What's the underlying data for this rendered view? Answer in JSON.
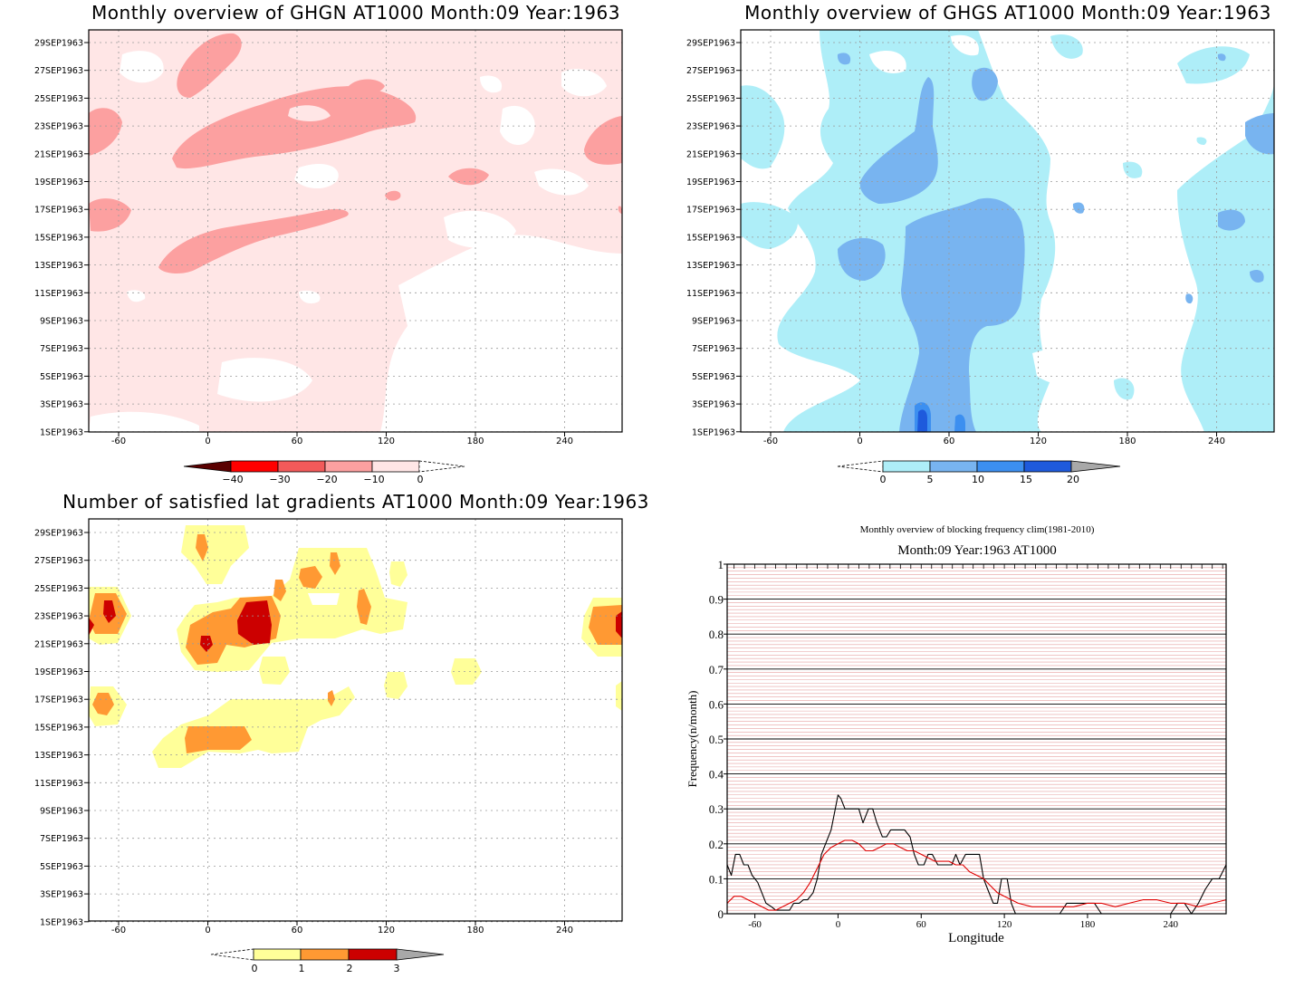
{
  "panels": {
    "ghgn": {
      "title": "Monthly overview of GHGN AT1000 Month:09 Year:1963",
      "colorbar_ticks": [
        "−40",
        "−30",
        "−20",
        "−10",
        "0"
      ],
      "colors": [
        "#5a0000",
        "#ff0000",
        "#f25a5a",
        "#fca0a0",
        "#ffe6e6"
      ]
    },
    "ghgs": {
      "title": "Monthly overview of GHGS AT1000 Month:09 Year:1963",
      "colorbar_ticks": [
        "0",
        "5",
        "10",
        "15",
        "20"
      ],
      "colors": [
        "#aeeef8",
        "#78b4f0",
        "#3c8ff0",
        "#1e5adc",
        "#a8a8a8"
      ]
    },
    "grad": {
      "title": "Number of satisfied lat gradients AT1000 Month:09 Year:1963",
      "colorbar_ticks": [
        "0",
        "1",
        "2",
        "3"
      ],
      "colors": [
        "#ffff99",
        "#ff9933",
        "#cc0000",
        "#a8a8a8"
      ]
    }
  },
  "shared_axes": {
    "y_ticks": [
      "29SEP1963",
      "27SEP1963",
      "25SEP1963",
      "23SEP1963",
      "21SEP1963",
      "19SEP1963",
      "17SEP1963",
      "15SEP1963",
      "13SEP1963",
      "11SEP1963",
      "9SEP1963",
      "7SEP1963",
      "5SEP1963",
      "3SEP1963",
      "1SEP1963"
    ],
    "x_ticks": [
      "-60",
      "0",
      "60",
      "120",
      "180",
      "240"
    ]
  },
  "freq": {
    "title": "Monthly overview of blocking frequency clim(1981-2010)",
    "subtitle": "Month:09 Year:1963  AT1000",
    "xlabel": "Longitude",
    "ylabel": "Frequency(n/month)",
    "y_ticks": [
      "0",
      "0.1",
      "0.2",
      "0.3",
      "0.4",
      "0.5",
      "0.6",
      "0.7",
      "0.8",
      "0.9",
      "1"
    ],
    "x_ticks": [
      "-60",
      "0",
      "60",
      "120",
      "180",
      "240"
    ]
  },
  "chart_data": [
    {
      "type": "heatmap",
      "title": "Monthly overview of GHGN AT1000 Month:09 Year:1963",
      "xlim": [
        -75,
        285
      ],
      "ylim": [
        "1SEP1963",
        "30SEP1963"
      ],
      "color_levels": [
        -40,
        -30,
        -20,
        -10,
        0
      ],
      "colors": [
        "#5a0000",
        "#ff0000",
        "#f25a5a",
        "#fca0a0",
        "#ffe6e6"
      ],
      "regions_lon_day": [
        {
          "level": "-20 to -10",
          "lon": [
            -5,
            145
          ],
          "day": [
            19.5,
            26.5
          ]
        },
        {
          "level": "-20 to -10",
          "lon": [
            -30,
            100
          ],
          "day": [
            13.2,
            17.2
          ]
        },
        {
          "level": "-20 to -10",
          "lon": [
            -18,
            40
          ],
          "day": [
            24.5,
            30
          ]
        },
        {
          "level": "-20 to -10",
          "lon": [
            -75,
            -55
          ],
          "day": [
            20.5,
            24.5
          ]
        },
        {
          "level": "-20 to -10",
          "lon": [
            255,
            285
          ],
          "day": [
            20.5,
            24
          ]
        },
        {
          "level": "-20 to -10",
          "lon": [
            -75,
            -46
          ],
          "day": [
            15.5,
            17.8
          ]
        },
        {
          "level": "-20 to -10",
          "lon": [
            94,
            122
          ],
          "day": [
            25,
            27
          ]
        },
        {
          "level": "-20 to -10",
          "lon": [
            165,
            195
          ],
          "day": [
            18.5,
            20
          ]
        },
        {
          "level": "-10 to 0",
          "lon": [
            -75,
            285
          ],
          "day": [
            1,
            30
          ]
        }
      ]
    },
    {
      "type": "heatmap",
      "title": "Monthly overview of GHGS AT1000 Month:09 Year:1963",
      "xlim": [
        -75,
        285
      ],
      "ylim": [
        "1SEP1963",
        "30SEP1963"
      ],
      "color_levels": [
        0,
        5,
        10,
        15,
        20
      ],
      "colors": [
        "#aeeef8",
        "#78b4f0",
        "#3c8ff0",
        "#1e5adc",
        "#a8a8a8"
      ],
      "regions_lon_day": [
        {
          "level": "0 to 5",
          "lon": [
            -15,
            145
          ],
          "day": [
            1,
            30
          ]
        },
        {
          "level": "0 to 5",
          "lon": [
            -75,
            -30
          ],
          "day": [
            12,
            30
          ]
        },
        {
          "level": "0 to 5",
          "lon": [
            210,
            285
          ],
          "day": [
            1,
            30
          ]
        },
        {
          "level": "5 to 10",
          "lon": [
            30,
            110
          ],
          "day": [
            1,
            17
          ]
        },
        {
          "level": "5 to 10",
          "lon": [
            0,
            55
          ],
          "day": [
            18.5,
            26
          ]
        },
        {
          "level": "5 to 10",
          "lon": [
            -12,
            20
          ],
          "day": [
            12.5,
            16
          ]
        },
        {
          "level": "5 to 10",
          "lon": [
            80,
            105
          ],
          "day": [
            25.5,
            29.5
          ]
        },
        {
          "level": "5 to 10",
          "lon": [
            247,
            285
          ],
          "day": [
            21,
            24
          ]
        },
        {
          "level": "10 to 15",
          "lon": [
            42,
            50
          ],
          "day": [
            1,
            3
          ]
        }
      ]
    },
    {
      "type": "heatmap",
      "title": "Number of satisfied lat gradients AT1000 Month:09 Year:1963",
      "xlim": [
        -75,
        285
      ],
      "ylim": [
        "1SEP1963",
        "30SEP1963"
      ],
      "color_levels": [
        0,
        1,
        2,
        3
      ],
      "colors": [
        "#ffff99",
        "#ff9933",
        "#cc0000",
        "#a8a8a8"
      ],
      "regions_lon_day": [
        {
          "level": "1 to 2",
          "lon": [
            -15,
            55
          ],
          "day": [
            20.5,
            23.5
          ]
        },
        {
          "level": "1 to 2",
          "lon": [
            -15,
            35
          ],
          "day": [
            13.6,
            15.2
          ]
        },
        {
          "level": "1 to 2",
          "lon": [
            -75,
            -60
          ],
          "day": [
            22,
            24
          ]
        },
        {
          "level": "1 to 2",
          "lon": [
            258,
            285
          ],
          "day": [
            21.8,
            24
          ]
        },
        {
          "level": "2 to 3",
          "lon": [
            20,
            45
          ],
          "day": [
            21.5,
            24.5
          ]
        },
        {
          "level": "2 to 3",
          "lon": [
            -5,
            3
          ],
          "day": [
            20.5,
            21.5
          ]
        },
        {
          "level": "0 to 1",
          "lon": [
            -40,
            135
          ],
          "day": [
            12.5,
            30
          ]
        }
      ]
    },
    {
      "type": "line",
      "title": "Monthly overview of blocking frequency clim(1981-2010)",
      "subtitle": "Month:09 Year:1963  AT1000",
      "xlabel": "Longitude",
      "ylabel": "Frequency(n/month)",
      "xlim": [
        -80,
        280
      ],
      "ylim": [
        0,
        1
      ],
      "grid": true,
      "series": [
        {
          "color": "#000000",
          "x": [
            -80,
            -77,
            -74,
            -71,
            -68,
            -65,
            -62,
            -58,
            -55,
            -52,
            -48,
            -45,
            -42,
            -38,
            -35,
            -32,
            -28,
            -25,
            -22,
            -18,
            -15,
            -12,
            -8,
            -5,
            -2,
            0,
            2,
            5,
            8,
            12,
            15,
            18,
            22,
            25,
            28,
            32,
            35,
            38,
            42,
            45,
            48,
            52,
            55,
            58,
            62,
            65,
            68,
            72,
            75,
            78,
            82,
            85,
            88,
            92,
            95,
            98,
            102,
            105,
            108,
            112,
            115,
            118,
            122,
            125,
            128,
            132,
            135,
            138,
            145,
            160,
            165,
            185,
            190,
            230,
            240,
            245,
            250,
            255,
            260,
            265,
            270,
            275,
            280
          ],
          "y": [
            0.14,
            0.11,
            0.17,
            0.17,
            0.14,
            0.14,
            0.11,
            0.09,
            0.06,
            0.03,
            0.02,
            0.01,
            0.01,
            0.01,
            0.01,
            0.03,
            0.03,
            0.04,
            0.04,
            0.06,
            0.1,
            0.17,
            0.21,
            0.24,
            0.3,
            0.34,
            0.33,
            0.3,
            0.3,
            0.3,
            0.3,
            0.26,
            0.3,
            0.3,
            0.26,
            0.22,
            0.22,
            0.24,
            0.24,
            0.24,
            0.24,
            0.22,
            0.17,
            0.14,
            0.14,
            0.17,
            0.17,
            0.14,
            0.14,
            0.14,
            0.14,
            0.17,
            0.14,
            0.17,
            0.17,
            0.17,
            0.17,
            0.1,
            0.07,
            0.03,
            0.03,
            0.1,
            0.1,
            0.03,
            0,
            0,
            0,
            0,
            0,
            0,
            0.03,
            0.03,
            0,
            0,
            0,
            0.03,
            0.03,
            0,
            0.03,
            0.07,
            0.1,
            0.1,
            0.14
          ]
        },
        {
          "color": "#e00000",
          "x": [
            -80,
            -75,
            -70,
            -65,
            -60,
            -55,
            -50,
            -45,
            -40,
            -35,
            -30,
            -25,
            -20,
            -15,
            -10,
            -5,
            0,
            5,
            10,
            15,
            20,
            25,
            30,
            35,
            40,
            45,
            50,
            55,
            60,
            65,
            70,
            75,
            80,
            85,
            90,
            95,
            100,
            105,
            110,
            115,
            120,
            130,
            140,
            150,
            160,
            170,
            180,
            190,
            200,
            210,
            220,
            230,
            240,
            250,
            260,
            270,
            280
          ],
          "y": [
            0.03,
            0.05,
            0.05,
            0.04,
            0.03,
            0.02,
            0.01,
            0.01,
            0.02,
            0.03,
            0.04,
            0.06,
            0.09,
            0.13,
            0.17,
            0.19,
            0.2,
            0.21,
            0.21,
            0.2,
            0.18,
            0.18,
            0.19,
            0.2,
            0.2,
            0.19,
            0.18,
            0.18,
            0.17,
            0.16,
            0.15,
            0.15,
            0.15,
            0.14,
            0.14,
            0.12,
            0.11,
            0.1,
            0.08,
            0.06,
            0.05,
            0.03,
            0.02,
            0.02,
            0.02,
            0.02,
            0.03,
            0.03,
            0.02,
            0.03,
            0.04,
            0.04,
            0.03,
            0.03,
            0.02,
            0.03,
            0.04
          ]
        }
      ]
    }
  ]
}
